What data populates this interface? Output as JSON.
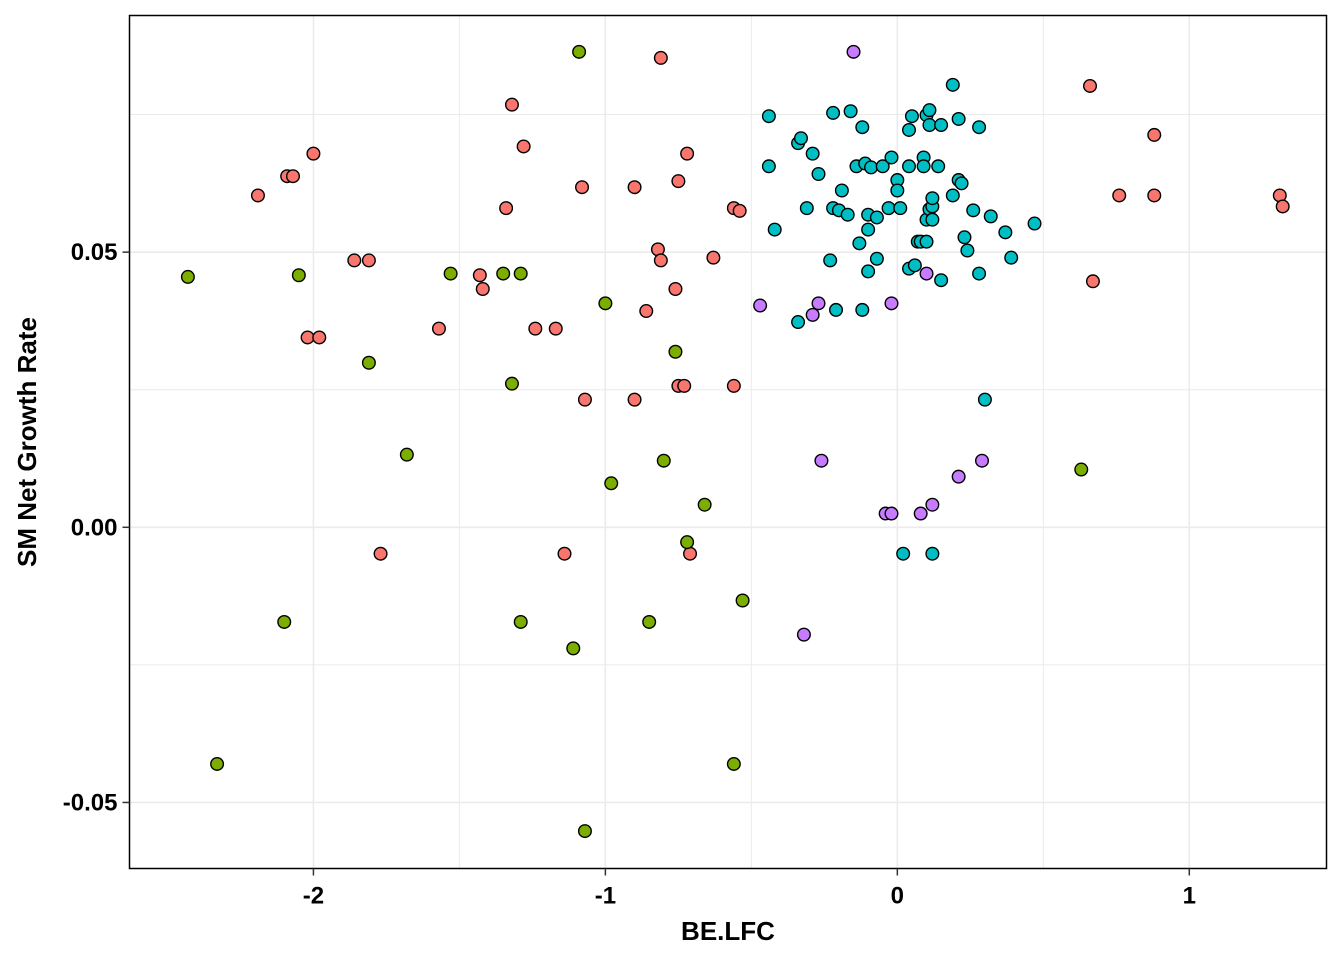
{
  "chart_data": {
    "type": "scatter",
    "xlabel": "BE.LFC",
    "ylabel": "SM Net Growth Rate",
    "xlim": [
      -2.63,
      1.47
    ],
    "ylim": [
      -0.062,
      0.093
    ],
    "x_ticks": [
      -2,
      -1,
      0,
      1
    ],
    "x_tick_labels": [
      "-2",
      "-1",
      "0",
      "1"
    ],
    "y_ticks": [
      -0.05,
      0,
      0.05
    ],
    "y_tick_labels": [
      "-0.05",
      "0.00",
      "0.05"
    ],
    "x_minor_gridlines": [
      -1.5,
      -0.5,
      0.5
    ],
    "y_minor_gridlines": [
      -0.025,
      0.025,
      0.075
    ],
    "grid": true,
    "legend": "none",
    "series": [
      {
        "color": "#F8766D",
        "points": [
          [
            -2.19,
            0.0603
          ],
          [
            -2.09,
            0.0638
          ],
          [
            -2.07,
            0.0638
          ],
          [
            -2.0,
            0.0679
          ],
          [
            -2.02,
            0.0345
          ],
          [
            -1.98,
            0.0345
          ],
          [
            -1.86,
            0.0485
          ],
          [
            -1.81,
            0.0485
          ],
          [
            -1.77,
            -0.0048
          ],
          [
            -1.57,
            0.0361
          ],
          [
            -1.43,
            0.0458
          ],
          [
            -1.42,
            0.0433
          ],
          [
            -1.34,
            0.058
          ],
          [
            -1.32,
            0.0768
          ],
          [
            -1.28,
            0.0692
          ],
          [
            -1.24,
            0.0361
          ],
          [
            -1.17,
            0.0361
          ],
          [
            -1.14,
            -0.0048
          ],
          [
            -1.08,
            0.0618
          ],
          [
            -1.07,
            0.0232
          ],
          [
            -0.9,
            0.0618
          ],
          [
            -0.9,
            0.0232
          ],
          [
            -0.86,
            0.0393
          ],
          [
            -0.82,
            0.0505
          ],
          [
            -0.81,
            0.0485
          ],
          [
            -0.81,
            0.0853
          ],
          [
            -0.76,
            0.0433
          ],
          [
            -0.75,
            0.0629
          ],
          [
            -0.75,
            0.0257
          ],
          [
            -0.73,
            0.0257
          ],
          [
            -0.72,
            0.0679
          ],
          [
            -0.71,
            -0.0048
          ],
          [
            -0.63,
            0.049
          ],
          [
            -0.56,
            0.058
          ],
          [
            -0.56,
            0.0257
          ],
          [
            -0.54,
            0.0575
          ],
          [
            0.66,
            0.0802
          ],
          [
            0.67,
            0.0447
          ],
          [
            0.76,
            0.0603
          ],
          [
            0.88,
            0.0713
          ],
          [
            0.88,
            0.0603
          ],
          [
            1.31,
            0.0603
          ],
          [
            1.32,
            0.0583
          ]
        ]
      },
      {
        "color": "#7CAE00",
        "points": [
          [
            -2.43,
            0.0455
          ],
          [
            -2.33,
            -0.043
          ],
          [
            -2.1,
            -0.0172
          ],
          [
            -2.05,
            0.0458
          ],
          [
            -1.81,
            0.0299
          ],
          [
            -1.68,
            0.0132
          ],
          [
            -1.53,
            0.0461
          ],
          [
            -1.35,
            0.0461
          ],
          [
            -1.32,
            0.0261
          ],
          [
            -1.29,
            0.0461
          ],
          [
            -1.29,
            -0.0172
          ],
          [
            -1.11,
            -0.022
          ],
          [
            -1.09,
            0.0864
          ],
          [
            -1.07,
            -0.0552
          ],
          [
            -1.0,
            0.0407
          ],
          [
            -0.98,
            0.008
          ],
          [
            -0.85,
            -0.0172
          ],
          [
            -0.8,
            0.0121
          ],
          [
            -0.76,
            0.0319
          ],
          [
            -0.72,
            -0.0027
          ],
          [
            -0.66,
            0.0041
          ],
          [
            -0.56,
            -0.043
          ],
          [
            -0.53,
            -0.0133
          ],
          [
            0.63,
            0.0105
          ]
        ]
      },
      {
        "color": "#00BFC4",
        "points": [
          [
            -0.44,
            0.0747
          ],
          [
            -0.44,
            0.0656
          ],
          [
            -0.42,
            0.0541
          ],
          [
            -0.34,
            0.0373
          ],
          [
            -0.34,
            0.0698
          ],
          [
            -0.33,
            0.0707
          ],
          [
            -0.31,
            0.058
          ],
          [
            -0.29,
            0.0679
          ],
          [
            -0.27,
            0.0642
          ],
          [
            -0.23,
            0.0485
          ],
          [
            -0.22,
            0.0753
          ],
          [
            -0.22,
            0.058
          ],
          [
            -0.21,
            0.0395
          ],
          [
            -0.2,
            0.0576
          ],
          [
            -0.19,
            0.0612
          ],
          [
            -0.17,
            0.0568
          ],
          [
            -0.16,
            0.0756
          ],
          [
            -0.14,
            0.0656
          ],
          [
            -0.13,
            0.0516
          ],
          [
            -0.12,
            0.0727
          ],
          [
            -0.12,
            0.0395
          ],
          [
            -0.11,
            0.0661
          ],
          [
            -0.1,
            0.0568
          ],
          [
            -0.1,
            0.0541
          ],
          [
            -0.1,
            0.0465
          ],
          [
            -0.09,
            0.0654
          ],
          [
            -0.07,
            0.0563
          ],
          [
            -0.07,
            0.0488
          ],
          [
            -0.05,
            0.0656
          ],
          [
            -0.03,
            0.058
          ],
          [
            -0.02,
            0.0672
          ],
          [
            0.0,
            0.0631
          ],
          [
            0.0,
            0.0612
          ],
          [
            0.01,
            0.058
          ],
          [
            0.02,
            -0.0048
          ],
          [
            0.04,
            0.0722
          ],
          [
            0.04,
            0.0656
          ],
          [
            0.04,
            0.047
          ],
          [
            0.05,
            0.0747
          ],
          [
            0.06,
            0.0476
          ],
          [
            0.07,
            0.0519
          ],
          [
            0.08,
            0.0519
          ],
          [
            0.09,
            0.0672
          ],
          [
            0.09,
            0.0656
          ],
          [
            0.1,
            0.0749
          ],
          [
            0.1,
            0.0559
          ],
          [
            0.1,
            0.0519
          ],
          [
            0.11,
            0.0758
          ],
          [
            0.11,
            0.0731
          ],
          [
            0.11,
            0.0578
          ],
          [
            0.12,
            0.0583
          ],
          [
            0.12,
            0.0598
          ],
          [
            0.12,
            0.0559
          ],
          [
            0.12,
            -0.0048
          ],
          [
            0.14,
            0.0656
          ],
          [
            0.15,
            0.0731
          ],
          [
            0.15,
            0.0449
          ],
          [
            0.19,
            0.0804
          ],
          [
            0.19,
            0.0603
          ],
          [
            0.21,
            0.0742
          ],
          [
            0.21,
            0.0631
          ],
          [
            0.22,
            0.0625
          ],
          [
            0.23,
            0.0527
          ],
          [
            0.24,
            0.0503
          ],
          [
            0.26,
            0.0576
          ],
          [
            0.28,
            0.0727
          ],
          [
            0.28,
            0.0461
          ],
          [
            0.3,
            0.0232
          ],
          [
            0.32,
            0.0565
          ],
          [
            0.37,
            0.0536
          ],
          [
            0.39,
            0.049
          ],
          [
            0.47,
            0.0552
          ]
        ]
      },
      {
        "color": "#C77CFF",
        "points": [
          [
            -0.47,
            0.0403
          ],
          [
            -0.32,
            -0.0195
          ],
          [
            -0.29,
            0.0386
          ],
          [
            -0.27,
            0.0407
          ],
          [
            -0.26,
            0.0121
          ],
          [
            -0.15,
            0.0864
          ],
          [
            -0.04,
            0.0025
          ],
          [
            -0.02,
            0.0025
          ],
          [
            -0.02,
            0.0407
          ],
          [
            0.08,
            0.0025
          ],
          [
            0.1,
            0.0461
          ],
          [
            0.12,
            0.0041
          ],
          [
            0.21,
            0.0092
          ],
          [
            0.29,
            0.0121
          ]
        ]
      }
    ]
  }
}
